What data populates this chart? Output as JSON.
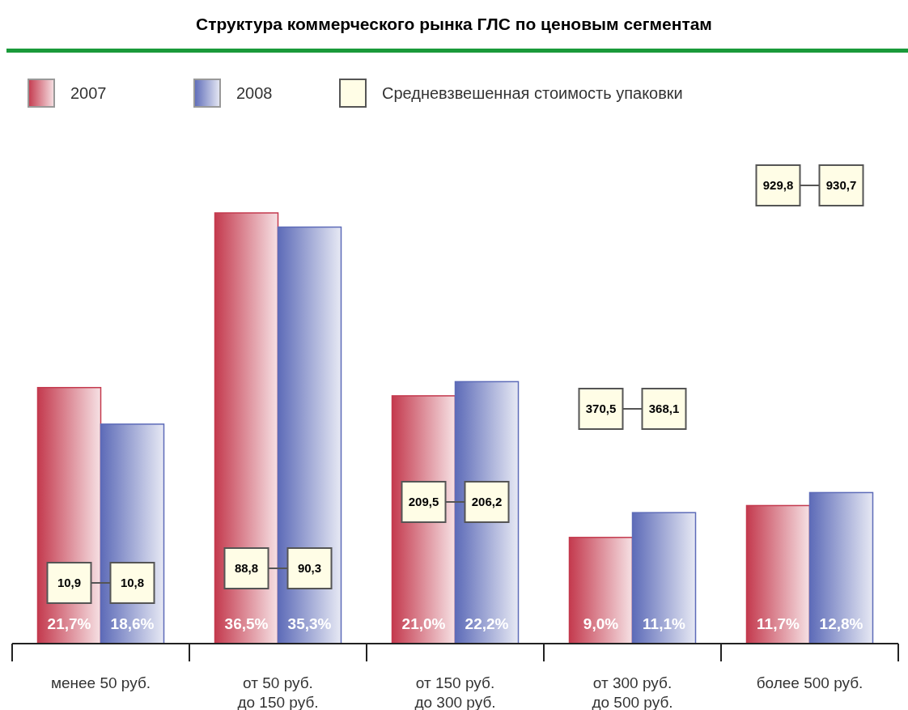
{
  "chart_data": {
    "type": "bar",
    "title": "Структура коммерческого рынка ГЛС по ценовым сегментам",
    "categories": [
      "менее 50 руб.",
      "от 50 руб.\nдо 150 руб.",
      "от 150 руб.\nдо 300 руб.",
      "от 300 руб.\nдо 500 руб.",
      "более 500 руб."
    ],
    "series": [
      {
        "name": "2007",
        "color": "#c43a4e",
        "values": [
          21.7,
          36.5,
          21.0,
          9.0,
          11.7
        ],
        "value_labels": [
          "21,7%",
          "36,5%",
          "21,0%",
          "9,0%",
          "11,7%"
        ]
      },
      {
        "name": "2008",
        "color": "#5d6bb8",
        "values": [
          18.6,
          35.3,
          22.2,
          11.1,
          12.8
        ],
        "value_labels": [
          "18,6%",
          "35,3%",
          "22,2%",
          "11,1%",
          "12,8%"
        ]
      }
    ],
    "annotations": [
      "Средневзвешенная стоимость упаковки",
      "10,9",
      "10,8",
      "88,8",
      "90,3",
      "209,5",
      "206,2",
      "370,5",
      "368,1",
      "929,8",
      "930,7"
    ],
    "tick_labels": "x",
    "legend": "top left"
  }
}
